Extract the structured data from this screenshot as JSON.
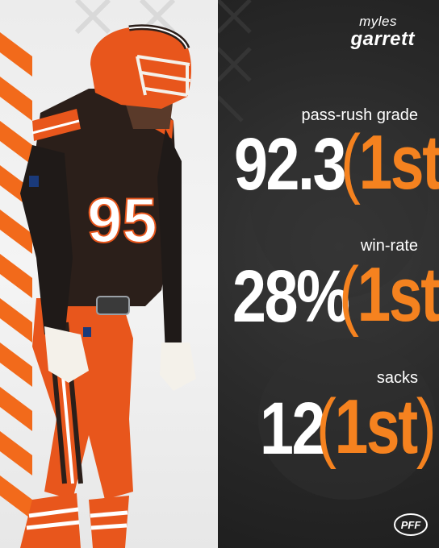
{
  "player": {
    "first_name": "myles",
    "last_name": "garrett",
    "jersey_number": "95"
  },
  "stats": [
    {
      "label": "pass-rush grade",
      "value": "92.3",
      "rank": "1st"
    },
    {
      "label": "win-rate",
      "value": "28%",
      "rank": "1st"
    },
    {
      "label": "sacks",
      "value": "12",
      "rank": "1st"
    }
  ],
  "brand": {
    "logo_text": "PFF"
  },
  "colors": {
    "orange": "#f5821f",
    "brown": "#2b1f1a",
    "dark_bg": "#262626",
    "white": "#ffffff"
  }
}
